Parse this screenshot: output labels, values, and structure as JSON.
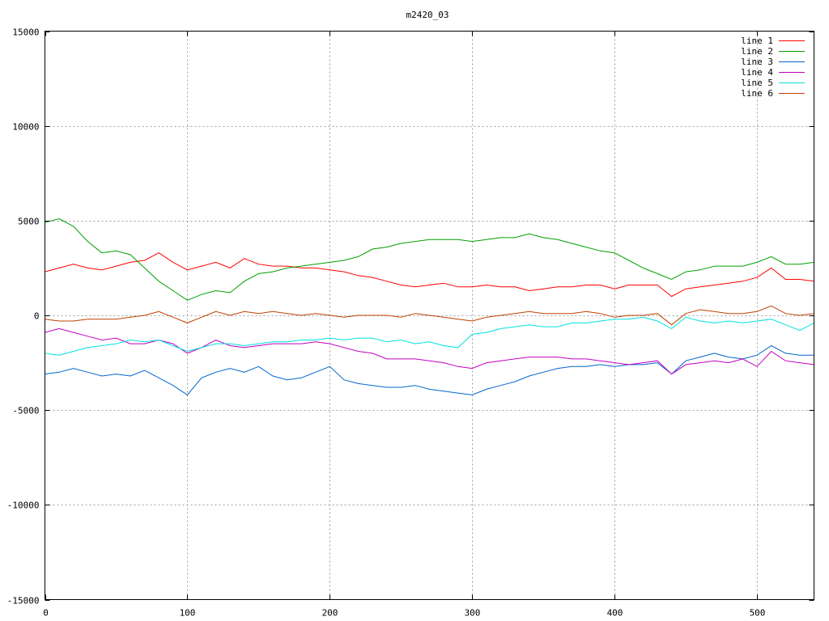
{
  "chart_data": {
    "type": "line",
    "title": "m2420_03",
    "xlabel": "",
    "ylabel": "",
    "xlim": [
      0,
      540
    ],
    "ylim": [
      -15000,
      15000
    ],
    "x_ticks": [
      0,
      100,
      200,
      300,
      400,
      500
    ],
    "y_ticks": [
      -15000,
      -10000,
      -5000,
      0,
      5000,
      10000,
      15000
    ],
    "grid": true,
    "legend_position": "top-right",
    "series": [
      {
        "name": "line 1",
        "color": "#ff0000",
        "x": [
          0,
          10,
          20,
          30,
          40,
          50,
          60,
          70,
          80,
          90,
          100,
          110,
          120,
          130,
          140,
          150,
          160,
          170,
          180,
          190,
          200,
          210,
          220,
          230,
          240,
          250,
          260,
          270,
          280,
          290,
          300,
          310,
          320,
          330,
          340,
          350,
          360,
          370,
          380,
          390,
          400,
          410,
          420,
          430,
          440,
          450,
          460,
          470,
          480,
          490,
          500,
          510,
          520,
          530,
          540
        ],
        "values": [
          2300,
          2500,
          2700,
          2500,
          2400,
          2600,
          2800,
          2900,
          3300,
          2800,
          2400,
          2600,
          2800,
          2500,
          3000,
          2700,
          2600,
          2600,
          2500,
          2500,
          2400,
          2300,
          2100,
          2000,
          1800,
          1600,
          1500,
          1600,
          1700,
          1500,
          1500,
          1600,
          1500,
          1500,
          1300,
          1400,
          1500,
          1500,
          1600,
          1600,
          1400,
          1600,
          1600,
          1600,
          1000,
          1400,
          1500,
          1600,
          1700,
          1800,
          2000,
          2500,
          1900,
          1900,
          1800
        ]
      },
      {
        "name": "line 2",
        "color": "#00a000",
        "x": [
          0,
          10,
          20,
          30,
          40,
          50,
          60,
          70,
          80,
          90,
          100,
          110,
          120,
          130,
          140,
          150,
          160,
          170,
          180,
          190,
          200,
          210,
          220,
          230,
          240,
          250,
          260,
          270,
          280,
          290,
          300,
          310,
          320,
          330,
          340,
          350,
          360,
          370,
          380,
          390,
          400,
          410,
          420,
          430,
          440,
          450,
          460,
          470,
          480,
          490,
          500,
          510,
          520,
          530,
          540
        ],
        "values": [
          4900,
          5100,
          4700,
          3900,
          3300,
          3400,
          3200,
          2500,
          1800,
          1300,
          800,
          1100,
          1300,
          1200,
          1800,
          2200,
          2300,
          2500,
          2600,
          2700,
          2800,
          2900,
          3100,
          3500,
          3600,
          3800,
          3900,
          4000,
          4000,
          4000,
          3900,
          4000,
          4100,
          4100,
          4300,
          4100,
          4000,
          3800,
          3600,
          3400,
          3300,
          2900,
          2500,
          2200,
          1900,
          2300,
          2400,
          2600,
          2600,
          2600,
          2800,
          3100,
          2700,
          2700,
          2800
        ]
      },
      {
        "name": "line 3",
        "color": "#0066cc",
        "x": [
          0,
          10,
          20,
          30,
          40,
          50,
          60,
          70,
          80,
          90,
          100,
          110,
          120,
          130,
          140,
          150,
          160,
          170,
          180,
          190,
          200,
          210,
          220,
          230,
          240,
          250,
          260,
          270,
          280,
          290,
          300,
          310,
          320,
          330,
          340,
          350,
          360,
          370,
          380,
          390,
          400,
          410,
          420,
          430,
          440,
          450,
          460,
          470,
          480,
          490,
          500,
          510,
          520,
          530,
          540
        ],
        "values": [
          -3100,
          -3000,
          -2800,
          -3000,
          -3200,
          -3100,
          -3200,
          -2900,
          -3300,
          -3700,
          -4200,
          -3300,
          -3000,
          -2800,
          -3000,
          -2700,
          -3200,
          -3400,
          -3300,
          -3000,
          -2700,
          -3400,
          -3600,
          -3700,
          -3800,
          -3800,
          -3700,
          -3900,
          -4000,
          -4100,
          -4200,
          -3900,
          -3700,
          -3500,
          -3200,
          -3000,
          -2800,
          -2700,
          -2700,
          -2600,
          -2700,
          -2600,
          -2600,
          -2500,
          -3100,
          -2400,
          -2200,
          -2000,
          -2200,
          -2300,
          -2100,
          -1600,
          -2000,
          -2100,
          -2100
        ]
      },
      {
        "name": "line 4",
        "color": "#c000c0",
        "x": [
          0,
          10,
          20,
          30,
          40,
          50,
          60,
          70,
          80,
          90,
          100,
          110,
          120,
          130,
          140,
          150,
          160,
          170,
          180,
          190,
          200,
          210,
          220,
          230,
          240,
          250,
          260,
          270,
          280,
          290,
          300,
          310,
          320,
          330,
          340,
          350,
          360,
          370,
          380,
          390,
          400,
          410,
          420,
          430,
          440,
          450,
          460,
          470,
          480,
          490,
          500,
          510,
          520,
          530,
          540
        ],
        "values": [
          -900,
          -700,
          -900,
          -1100,
          -1300,
          -1200,
          -1500,
          -1500,
          -1300,
          -1500,
          -2000,
          -1700,
          -1300,
          -1600,
          -1700,
          -1600,
          -1500,
          -1500,
          -1500,
          -1400,
          -1500,
          -1700,
          -1900,
          -2000,
          -2300,
          -2300,
          -2300,
          -2400,
          -2500,
          -2700,
          -2800,
          -2500,
          -2400,
          -2300,
          -2200,
          -2200,
          -2200,
          -2300,
          -2300,
          -2400,
          -2500,
          -2600,
          -2500,
          -2400,
          -3100,
          -2600,
          -2500,
          -2400,
          -2500,
          -2300,
          -2700,
          -1900,
          -2400,
          -2500,
          -2600
        ]
      },
      {
        "name": "line 5",
        "color": "#00e0e0",
        "x": [
          0,
          10,
          20,
          30,
          40,
          50,
          60,
          70,
          80,
          90,
          100,
          110,
          120,
          130,
          140,
          150,
          160,
          170,
          180,
          190,
          200,
          210,
          220,
          230,
          240,
          250,
          260,
          270,
          280,
          290,
          300,
          310,
          320,
          330,
          340,
          350,
          360,
          370,
          380,
          390,
          400,
          410,
          420,
          430,
          440,
          450,
          460,
          470,
          480,
          490,
          500,
          510,
          520,
          530,
          540
        ],
        "values": [
          -2000,
          -2100,
          -1900,
          -1700,
          -1600,
          -1500,
          -1300,
          -1400,
          -1300,
          -1600,
          -1900,
          -1700,
          -1500,
          -1500,
          -1600,
          -1500,
          -1400,
          -1400,
          -1300,
          -1300,
          -1200,
          -1300,
          -1200,
          -1200,
          -1400,
          -1300,
          -1500,
          -1400,
          -1600,
          -1700,
          -1000,
          -900,
          -700,
          -600,
          -500,
          -600,
          -600,
          -400,
          -400,
          -300,
          -200,
          -200,
          -100,
          -300,
          -700,
          -100,
          -300,
          -400,
          -300,
          -400,
          -300,
          -200,
          -500,
          -800,
          -400
        ]
      },
      {
        "name": "line 6",
        "color": "#c04000",
        "x": [
          0,
          10,
          20,
          30,
          40,
          50,
          60,
          70,
          80,
          90,
          100,
          110,
          120,
          130,
          140,
          150,
          160,
          170,
          180,
          190,
          200,
          210,
          220,
          230,
          240,
          250,
          260,
          270,
          280,
          290,
          300,
          310,
          320,
          330,
          340,
          350,
          360,
          370,
          380,
          390,
          400,
          410,
          420,
          430,
          440,
          450,
          460,
          470,
          480,
          490,
          500,
          510,
          520,
          530,
          540
        ],
        "values": [
          -200,
          -300,
          -300,
          -200,
          -200,
          -200,
          -100,
          0,
          200,
          -100,
          -400,
          -100,
          200,
          0,
          200,
          100,
          200,
          100,
          0,
          100,
          0,
          -100,
          0,
          0,
          0,
          -100,
          100,
          0,
          -100,
          -200,
          -300,
          -100,
          0,
          100,
          200,
          100,
          100,
          100,
          200,
          100,
          -100,
          0,
          0,
          100,
          -500,
          100,
          300,
          200,
          100,
          100,
          200,
          500,
          100,
          0,
          100
        ]
      }
    ]
  }
}
